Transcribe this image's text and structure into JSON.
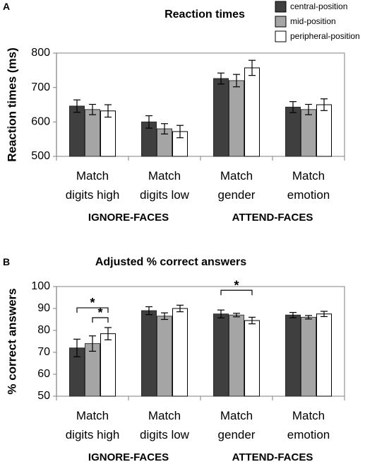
{
  "legend": [
    {
      "label": "central-position",
      "color": "#3f3f3f"
    },
    {
      "label": "mid-position",
      "color": "#a5a5a5"
    },
    {
      "label": "peripheral-position",
      "color": "#ffffff"
    }
  ],
  "chart_data": [
    {
      "panel_label": "A",
      "type": "bar",
      "title": "Reaction times",
      "ylabel": "Reaction times (ms)",
      "xlabel": "",
      "ylim": [
        500,
        800
      ],
      "yticks": [
        500,
        600,
        700,
        800
      ],
      "categories": [
        "Match digits high",
        "Match digits low",
        "Match gender",
        "Match emotion"
      ],
      "category_lines": [
        [
          "Match",
          "digits high"
        ],
        [
          "Match",
          "digits low"
        ],
        [
          "Match",
          "gender"
        ],
        [
          "Match",
          "emotion"
        ]
      ],
      "group_labels": [
        "IGNORE-FACES",
        "ATTEND-FACES"
      ],
      "grid": false,
      "legend_position": "top-right",
      "series": [
        {
          "name": "central-position",
          "values": [
            646,
            600,
            726,
            643
          ],
          "errors": [
            18,
            18,
            16,
            16
          ]
        },
        {
          "name": "mid-position",
          "values": [
            636,
            580,
            720,
            636
          ],
          "errors": [
            15,
            15,
            18,
            15
          ]
        },
        {
          "name": "peripheral-position",
          "values": [
            632,
            572,
            757,
            650
          ],
          "errors": [
            18,
            18,
            22,
            17
          ]
        }
      ],
      "significance": []
    },
    {
      "panel_label": "B",
      "type": "bar",
      "title": "Adjusted % correct answers",
      "ylabel": "% correct answers",
      "xlabel": "",
      "ylim": [
        50,
        100
      ],
      "yticks": [
        50,
        60,
        70,
        80,
        90,
        100
      ],
      "categories": [
        "Match digits high",
        "Match digits low",
        "Match gender",
        "Match emotion"
      ],
      "category_lines": [
        [
          "Match",
          "digits high"
        ],
        [
          "Match",
          "digits low"
        ],
        [
          "Match",
          "gender"
        ],
        [
          "Match",
          "emotion"
        ]
      ],
      "group_labels": [
        "IGNORE-FACES",
        "ATTEND-FACES"
      ],
      "grid": false,
      "series": [
        {
          "name": "central-position",
          "values": [
            72,
            89,
            87.5,
            87
          ],
          "errors": [
            4,
            1.8,
            1.8,
            1.2
          ]
        },
        {
          "name": "mid-position",
          "values": [
            74,
            86.5,
            87,
            86
          ],
          "errors": [
            3.5,
            1.5,
            0.8,
            0.8
          ]
        },
        {
          "name": "peripheral-position",
          "values": [
            78.5,
            90,
            84.5,
            87.5
          ],
          "errors": [
            2.8,
            1.5,
            1.5,
            1.2
          ]
        }
      ],
      "significance": [
        {
          "category": 0,
          "from": 0,
          "to": 2,
          "label": "*"
        },
        {
          "category": 0,
          "from": 1,
          "to": 2,
          "label": "*"
        },
        {
          "category": 2,
          "from": 0,
          "to": 2,
          "label": "*"
        }
      ]
    }
  ]
}
